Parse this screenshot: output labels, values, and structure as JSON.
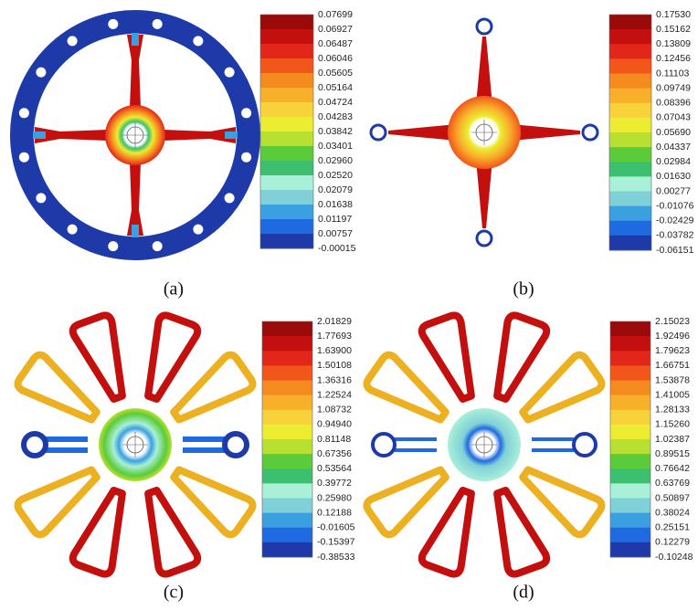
{
  "panels": [
    {
      "caption": "(a)",
      "colorbar": [
        "0.07699",
        "0.06927",
        "0.06487",
        "0.06046",
        "0.05605",
        "0.05164",
        "0.04724",
        "0.04283",
        "0.03842",
        "0.03401",
        "0.02960",
        "0.02520",
        "0.02079",
        "0.01638",
        "0.01197",
        "0.00757",
        "-0.00015"
      ]
    },
    {
      "caption": "(b)",
      "colorbar": [
        "0.17530",
        "0.15162",
        "0.13809",
        "0.12456",
        "0.11103",
        "0.09749",
        "0.08396",
        "0.07043",
        "0.05690",
        "0.04337",
        "0.02984",
        "0.01630",
        "0.00277",
        "-0.01076",
        "-0.02429",
        "-0.03782",
        "-0.06151"
      ]
    },
    {
      "caption": "(c)",
      "colorbar": [
        "2.01829",
        "1.77693",
        "1.63900",
        "1.50108",
        "1.36316",
        "1.22524",
        "1.08732",
        "0.94940",
        "0.81148",
        "0.67356",
        "0.53564",
        "0.39772",
        "0.25980",
        "0.12188",
        "-0.01605",
        "-0.15397",
        "-0.38533"
      ]
    },
    {
      "caption": "(d)",
      "colorbar": [
        "2.15023",
        "1.92496",
        "1.79623",
        "1.66751",
        "1.53878",
        "1.41005",
        "1.28133",
        "1.15260",
        "1.02387",
        "0.89515",
        "0.76642",
        "0.63769",
        "0.50897",
        "0.38024",
        "0.25151",
        "0.12279",
        "-0.10248"
      ]
    }
  ]
}
